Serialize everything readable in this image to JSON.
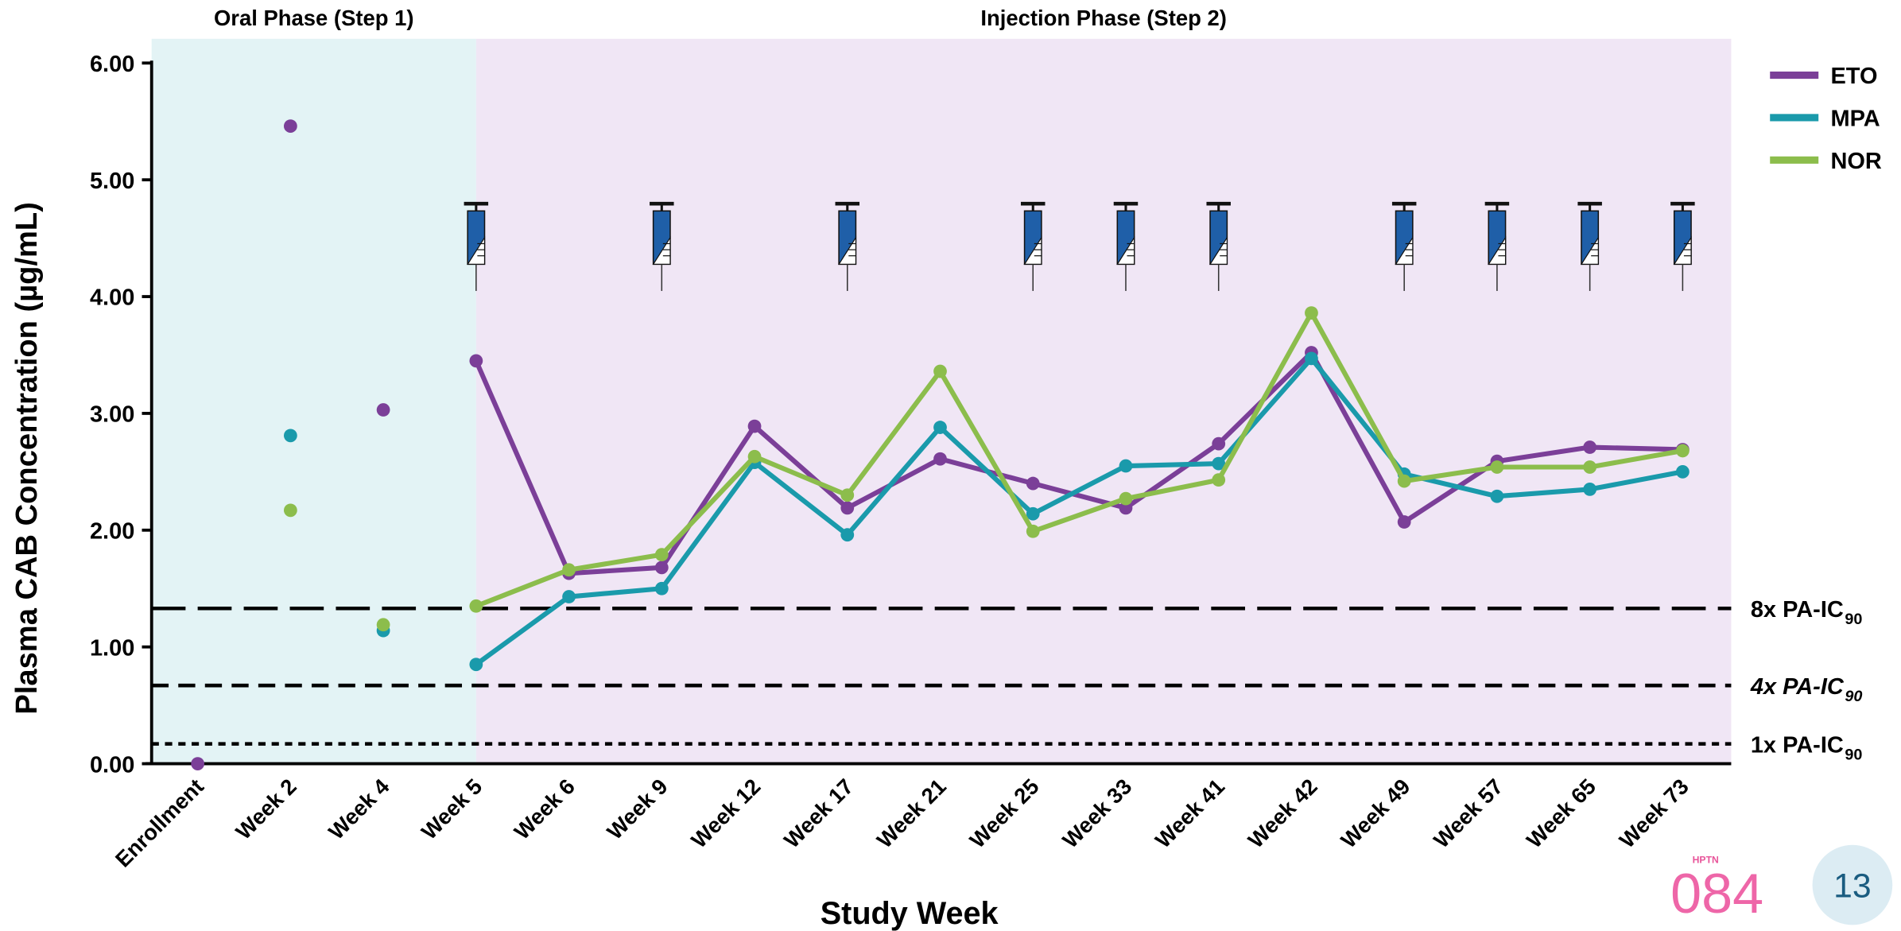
{
  "chart_data": {
    "type": "line",
    "x_label": "Study Week",
    "y_label": "Plasma CAB Concentration (µg/mL)",
    "categories": [
      "Enrollment",
      "Week 2",
      "Week 4",
      "Week 5",
      "Week 6",
      "Week 9",
      "Week 12",
      "Week 17",
      "Week 21",
      "Week 25",
      "Week 33",
      "Week 41",
      "Week 42",
      "Week 49",
      "Week 57",
      "Week 65",
      "Week 73"
    ],
    "series": [
      {
        "name": "ETO",
        "color": "#7b3f98",
        "values": [
          0,
          5.46,
          3.03,
          3.45,
          1.63,
          1.68,
          2.89,
          2.19,
          2.61,
          2.4,
          2.19,
          2.74,
          3.52,
          2.07,
          2.59,
          2.71,
          2.69
        ]
      },
      {
        "name": "MPA",
        "color": "#1a9aab",
        "values": [
          null,
          2.81,
          1.14,
          0.85,
          1.43,
          1.5,
          2.58,
          1.96,
          2.88,
          2.14,
          2.55,
          2.57,
          3.47,
          2.48,
          2.29,
          2.35,
          2.5
        ]
      },
      {
        "name": "NOR",
        "color": "#8cbd4c",
        "values": [
          null,
          2.17,
          1.19,
          1.35,
          1.66,
          1.79,
          2.63,
          2.3,
          3.36,
          1.99,
          2.27,
          2.43,
          3.86,
          2.42,
          2.54,
          2.54,
          2.68
        ]
      }
    ],
    "ylim": [
      0,
      6
    ],
    "yticks": [
      {
        "value": 0,
        "label": "0.00"
      },
      {
        "value": 1,
        "label": "1.00"
      },
      {
        "value": 2,
        "label": "2.00"
      },
      {
        "value": 3,
        "label": "3.00"
      },
      {
        "value": 4,
        "label": "4.00"
      },
      {
        "value": 5,
        "label": "5.00"
      },
      {
        "value": 6,
        "label": "6.00"
      }
    ],
    "phases": [
      {
        "label": "Oral Phase (Step 1)",
        "from": "Enrollment",
        "to": "Week 5",
        "color": "#e3f3f5",
        "connected": false
      },
      {
        "label": "Injection Phase (Step 2)",
        "from": "Week 5",
        "to": "Week 73",
        "color": "#f0e6f5",
        "connected": true
      }
    ],
    "reference_lines": [
      {
        "label": "8x PA-IC",
        "subscript": "90",
        "value": 1.33,
        "dash": "long",
        "italic": false
      },
      {
        "label": "4x PA-IC",
        "subscript": "90",
        "value": 0.67,
        "dash": "medium",
        "italic": true
      },
      {
        "label": "1x PA-IC",
        "subscript": "90",
        "value": 0.17,
        "dash": "short",
        "italic": false
      }
    ],
    "injections": [
      "Week 5",
      "Week 9",
      "Week 17",
      "Week 25",
      "Week 33",
      "Week 41",
      "Week 49",
      "Week 57",
      "Week 65",
      "Week 73"
    ],
    "legend": "upper right"
  },
  "footer": {
    "logo_small": "HPTN",
    "logo": "084",
    "page_number": "13"
  }
}
